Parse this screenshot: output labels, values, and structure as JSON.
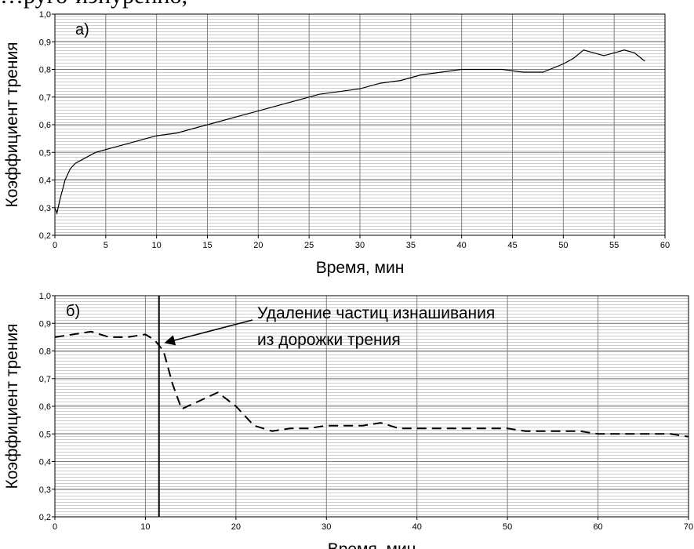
{
  "top_text": "…руго-иэнуренно,",
  "chart_data": [
    {
      "type": "line",
      "panel_label": "а)",
      "xlabel": "Время, мин",
      "ylabel": "Коэффициент трения",
      "xlim": [
        0,
        60
      ],
      "ylim": [
        0.2,
        1.0
      ],
      "x_ticks": [
        "0",
        "5",
        "10",
        "15",
        "20",
        "25",
        "30",
        "35",
        "40",
        "45",
        "50",
        "55",
        "60"
      ],
      "y_ticks": [
        "0,2",
        "0,3",
        "0,4",
        "0,5",
        "0,6",
        "0,7",
        "0,8",
        "0,9",
        "1,0"
      ],
      "grid": true,
      "line_style": "solid",
      "x": [
        0,
        0.2,
        0.5,
        1,
        1.5,
        2,
        2.5,
        3,
        4,
        5,
        6,
        7,
        8,
        9,
        10,
        12,
        14,
        16,
        18,
        20,
        22,
        24,
        26,
        28,
        30,
        32,
        34,
        36,
        38,
        40,
        42,
        44,
        46,
        48,
        50,
        51,
        52,
        53,
        54,
        55,
        56,
        57,
        58
      ],
      "y": [
        0.3,
        0.28,
        0.33,
        0.4,
        0.44,
        0.46,
        0.47,
        0.48,
        0.5,
        0.51,
        0.52,
        0.53,
        0.54,
        0.55,
        0.56,
        0.57,
        0.59,
        0.61,
        0.63,
        0.65,
        0.67,
        0.69,
        0.71,
        0.72,
        0.73,
        0.75,
        0.76,
        0.78,
        0.79,
        0.8,
        0.8,
        0.8,
        0.79,
        0.79,
        0.82,
        0.84,
        0.87,
        0.86,
        0.85,
        0.86,
        0.87,
        0.86,
        0.83
      ]
    },
    {
      "type": "line",
      "panel_label": "б)",
      "xlabel": "Время, мин",
      "ylabel": "Коэффициент трения",
      "xlim": [
        0,
        70
      ],
      "ylim": [
        0.2,
        1.0
      ],
      "x_ticks": [
        "0",
        "10",
        "20",
        "30",
        "40",
        "50",
        "60",
        "70"
      ],
      "y_ticks": [
        "0,2",
        "0,3",
        "0,4",
        "0,5",
        "0,6",
        "0,7",
        "0,8",
        "0,9",
        "1,0"
      ],
      "grid": true,
      "line_style": "dashed",
      "x": [
        0,
        2,
        4,
        6,
        8,
        10,
        11,
        12,
        13,
        14,
        16,
        18,
        20,
        22,
        24,
        26,
        28,
        30,
        32,
        34,
        36,
        38,
        40,
        42,
        44,
        46,
        48,
        50,
        52,
        54,
        56,
        58,
        60,
        62,
        64,
        66,
        68,
        70
      ],
      "y": [
        0.85,
        0.86,
        0.87,
        0.85,
        0.85,
        0.86,
        0.84,
        0.8,
        0.68,
        0.59,
        0.62,
        0.65,
        0.6,
        0.53,
        0.51,
        0.52,
        0.52,
        0.53,
        0.53,
        0.53,
        0.54,
        0.52,
        0.52,
        0.52,
        0.52,
        0.52,
        0.52,
        0.52,
        0.51,
        0.51,
        0.51,
        0.51,
        0.5,
        0.5,
        0.5,
        0.5,
        0.5,
        0.49
      ],
      "marker_line_x": 11.5,
      "annotation": {
        "line1": "Удаление частиц изнашивания",
        "line2": "из дорожки трения",
        "arrow_to": [
          12.2,
          0.83
        ]
      }
    }
  ]
}
